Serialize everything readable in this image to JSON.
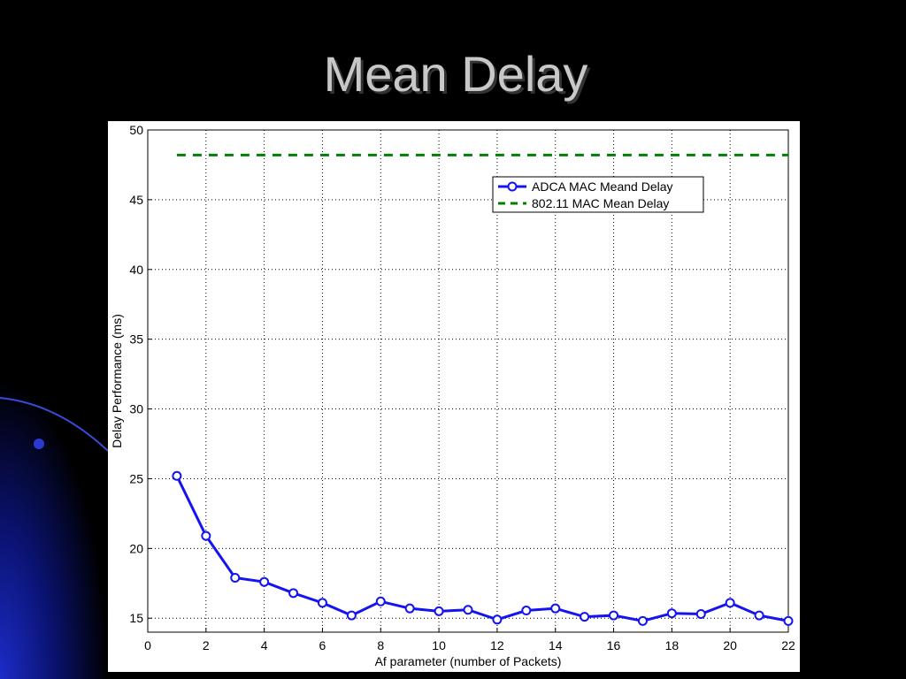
{
  "slide": {
    "title": "Mean Delay"
  },
  "chart_data": {
    "type": "line",
    "xlabel": "Af parameter (number of Packets)",
    "ylabel": "Delay Performance (ms)",
    "x": [
      1,
      2,
      3,
      4,
      5,
      6,
      7,
      8,
      9,
      10,
      11,
      12,
      13,
      14,
      15,
      16,
      17,
      18,
      19,
      20,
      21,
      22
    ],
    "series": [
      {
        "name": "ADCA MAC Meand Delay",
        "color": "#1414f0",
        "marker": "circle",
        "dash": "solid",
        "values": [
          25.2,
          20.9,
          17.9,
          17.6,
          16.8,
          16.1,
          15.2,
          16.2,
          15.7,
          15.5,
          15.6,
          14.9,
          15.55,
          15.7,
          15.1,
          15.2,
          14.8,
          15.35,
          15.3,
          16.1,
          15.2,
          14.8
        ]
      },
      {
        "name": "802.11 MAC Mean Delay",
        "color": "#008000",
        "marker": "none",
        "dash": "dashed",
        "values": [
          48.2,
          48.2,
          48.2,
          48.2,
          48.2,
          48.2,
          48.2,
          48.2,
          48.2,
          48.2,
          48.2,
          48.2,
          48.2,
          48.2,
          48.2,
          48.2,
          48.2,
          48.2,
          48.2,
          48.2,
          48.2,
          48.2
        ]
      }
    ],
    "xlim": [
      0,
      22
    ],
    "xticks": [
      0,
      2,
      4,
      6,
      8,
      10,
      12,
      14,
      16,
      18,
      20,
      22
    ],
    "ylim": [
      14,
      50
    ],
    "yticks": [
      15,
      20,
      25,
      30,
      35,
      40,
      45,
      50
    ],
    "grid": true,
    "legend": "upper right"
  }
}
